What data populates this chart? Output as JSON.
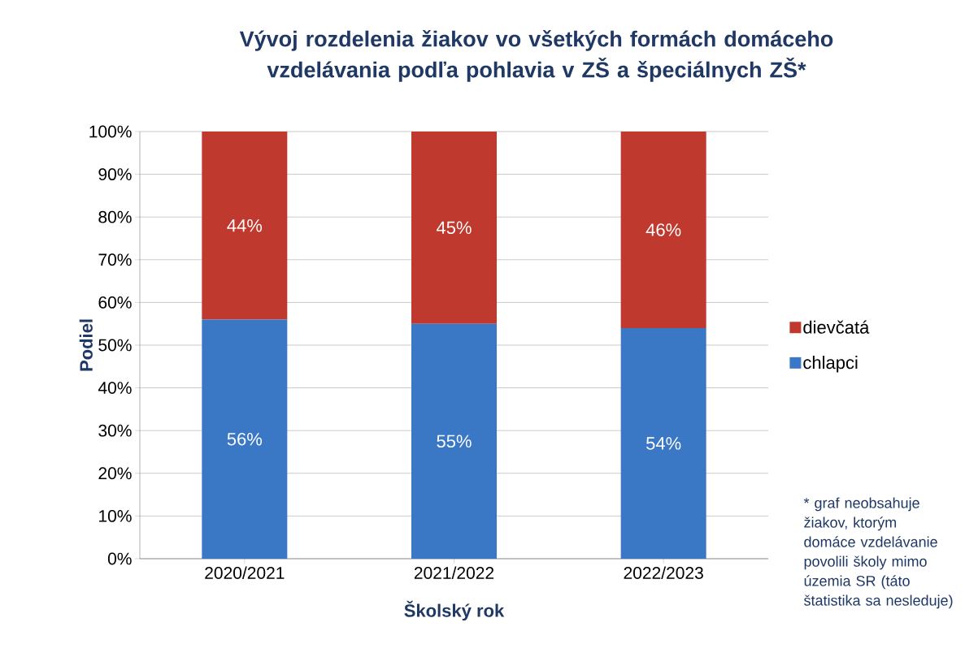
{
  "chart_data": {
    "type": "bar",
    "stacked": true,
    "title": "Vývoj rozdelenia žiakov vo všetkých formách domáceho vzdelávania podľa pohlavia v ZŠ a špeciálnych ZŠ*",
    "xlabel": "Školský rok",
    "ylabel": "Podiel",
    "categories": [
      "2020/2021",
      "2021/2022",
      "2022/2023"
    ],
    "series": [
      {
        "name": "chlapci",
        "color": "#3a78c6",
        "values": [
          56,
          55,
          54
        ],
        "value_labels": [
          "56%",
          "55%",
          "54%"
        ]
      },
      {
        "name": "dievčatá",
        "color": "#c0392f",
        "values": [
          44,
          45,
          46
        ],
        "value_labels": [
          "44%",
          "45%",
          "46%"
        ]
      }
    ],
    "ylim": [
      0,
      100
    ],
    "yticks": [
      {
        "value": 0,
        "label": "0%"
      },
      {
        "value": 10,
        "label": "10%"
      },
      {
        "value": 20,
        "label": "20%"
      },
      {
        "value": 30,
        "label": "30%"
      },
      {
        "value": 40,
        "label": "40%"
      },
      {
        "value": 50,
        "label": "50%"
      },
      {
        "value": 60,
        "label": "60%"
      },
      {
        "value": 70,
        "label": "70%"
      },
      {
        "value": 80,
        "label": "80%"
      },
      {
        "value": 90,
        "label": "90%"
      },
      {
        "value": 100,
        "label": "100%"
      }
    ],
    "grid": "y",
    "legend": "right",
    "annotations": [
      "* graf neobsahuje žiakov, ktorým domáce vzdelávanie povolili školy mimo územia SR (táto štatistika sa nesleduje)"
    ]
  }
}
